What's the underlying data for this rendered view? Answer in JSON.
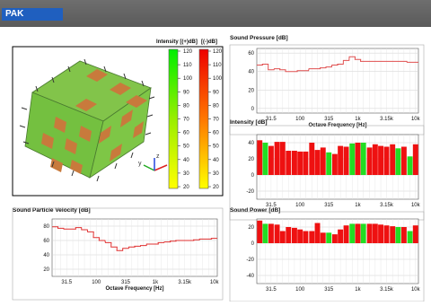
{
  "app": {
    "logo_text": "PAK"
  },
  "colorbar": {
    "pos_title": "Intensity [(+)dB]",
    "neg_title": "[(-)dB]",
    "ticks": [
      "120",
      "110",
      "100",
      "90",
      "80",
      "70",
      "60",
      "50",
      "40",
      "30",
      "20"
    ]
  },
  "axes_icon": {
    "x": "x",
    "y": "y",
    "z": "z"
  },
  "charts": [
    {
      "id": "sound-pressure",
      "title": "Sound Pressure [dB]",
      "xlabel": "Octave Frequency [Hz]",
      "yticks": [
        "60",
        "40",
        "20",
        "0"
      ],
      "xticks": [
        "31.5",
        "100",
        "315",
        "1k",
        "3.15k",
        "10k"
      ],
      "colors": {
        "line": "#e05050"
      }
    },
    {
      "id": "intensity",
      "title": "Intensity [dB]",
      "xlabel": "",
      "yticks": [
        "40",
        "20",
        "0",
        "-20"
      ],
      "xticks": [
        "31.5",
        "100",
        "315",
        "1k",
        "3.15k",
        "10k"
      ],
      "colors": {
        "positive": "#ee1111",
        "negative": "#22dd22"
      }
    },
    {
      "id": "particle-velocity",
      "title": "Sound Particle Velocity [dB]",
      "xlabel": "Octave Frequency [Hz]",
      "yticks": [
        "80",
        "60",
        "40",
        "20"
      ],
      "xticks": [
        "31.5",
        "100",
        "315",
        "1k",
        "3.15k",
        "10k"
      ],
      "colors": {
        "line": "#e03030"
      }
    },
    {
      "id": "sound-power",
      "title": "Sound Power [dB]",
      "xlabel": "",
      "yticks": [
        "20",
        "0",
        "-20",
        "-40"
      ],
      "xticks": [
        "31.5",
        "100",
        "315",
        "1k",
        "3.15k",
        "10k"
      ],
      "colors": {
        "positive": "#ee1111",
        "negative": "#22dd22"
      }
    }
  ],
  "chart_data": [
    {
      "type": "line",
      "title": "Sound Pressure [dB]",
      "xlabel": "Octave Frequency [Hz]",
      "ylabel": "",
      "x": [
        20,
        25,
        31.5,
        40,
        50,
        63,
        80,
        100,
        125,
        160,
        200,
        250,
        315,
        400,
        500,
        630,
        800,
        1000,
        1250,
        1600,
        2000,
        2500,
        3150,
        4000,
        5000,
        6300,
        8000,
        10000
      ],
      "values": [
        47,
        48,
        42,
        43,
        42,
        40,
        40,
        41,
        41,
        43,
        43,
        44,
        45,
        47,
        48,
        52,
        56,
        53,
        51,
        51,
        51,
        51,
        51,
        51,
        51,
        51,
        50,
        50
      ],
      "ylim": [
        -5,
        65
      ],
      "step": true
    },
    {
      "type": "bar",
      "title": "Intensity [dB]",
      "xlabel": "",
      "x": [
        20,
        25,
        31.5,
        40,
        50,
        63,
        80,
        100,
        125,
        160,
        200,
        250,
        315,
        400,
        500,
        630,
        800,
        1000,
        1250,
        1600,
        2000,
        2500,
        3150,
        4000,
        5000,
        6300,
        8000,
        10000
      ],
      "values": [
        43,
        40,
        36,
        41,
        41,
        30,
        30,
        29,
        29,
        40,
        31,
        34,
        28,
        26,
        36,
        35,
        39,
        40,
        40,
        34,
        38,
        36,
        35,
        38,
        33,
        35,
        23,
        38
      ],
      "positive": [
        true,
        false,
        true,
        true,
        true,
        true,
        true,
        true,
        true,
        true,
        true,
        true,
        false,
        true,
        true,
        true,
        false,
        true,
        false,
        true,
        true,
        true,
        true,
        true,
        false,
        true,
        false,
        true
      ],
      "ylim": [
        -30,
        50
      ]
    },
    {
      "type": "line",
      "title": "Sound Particle Velocity [dB]",
      "xlabel": "Octave Frequency [Hz]",
      "ylabel": "",
      "x": [
        20,
        25,
        31.5,
        40,
        50,
        63,
        80,
        100,
        125,
        160,
        200,
        250,
        315,
        400,
        500,
        630,
        800,
        1000,
        1250,
        1600,
        2000,
        2500,
        3150,
        4000,
        5000,
        6300,
        8000,
        10000
      ],
      "values": [
        79,
        77,
        76,
        76,
        78,
        75,
        72,
        64,
        60,
        57,
        51,
        46,
        49,
        51,
        52,
        53,
        55,
        55,
        57,
        58,
        59,
        60,
        60,
        60,
        61,
        62,
        62,
        63
      ],
      "ylim": [
        10,
        90
      ],
      "step": true
    },
    {
      "type": "bar",
      "title": "Sound Power [dB]",
      "xlabel": "",
      "x": [
        20,
        25,
        31.5,
        40,
        50,
        63,
        80,
        100,
        125,
        160,
        200,
        250,
        315,
        400,
        500,
        630,
        800,
        1000,
        1250,
        1600,
        2000,
        2500,
        3150,
        4000,
        5000,
        6300,
        8000,
        10000
      ],
      "values": [
        28,
        24,
        24,
        23,
        15,
        20,
        19,
        17,
        15,
        15,
        25,
        13,
        13,
        11,
        17,
        22,
        24,
        24,
        24,
        24,
        24,
        23,
        22,
        21,
        20,
        20,
        15,
        22
      ],
      "positive": [
        true,
        false,
        true,
        true,
        true,
        true,
        true,
        true,
        true,
        true,
        true,
        true,
        false,
        true,
        true,
        true,
        false,
        true,
        false,
        true,
        true,
        true,
        true,
        true,
        false,
        true,
        false,
        true
      ],
      "ylim": [
        -50,
        30
      ]
    }
  ]
}
